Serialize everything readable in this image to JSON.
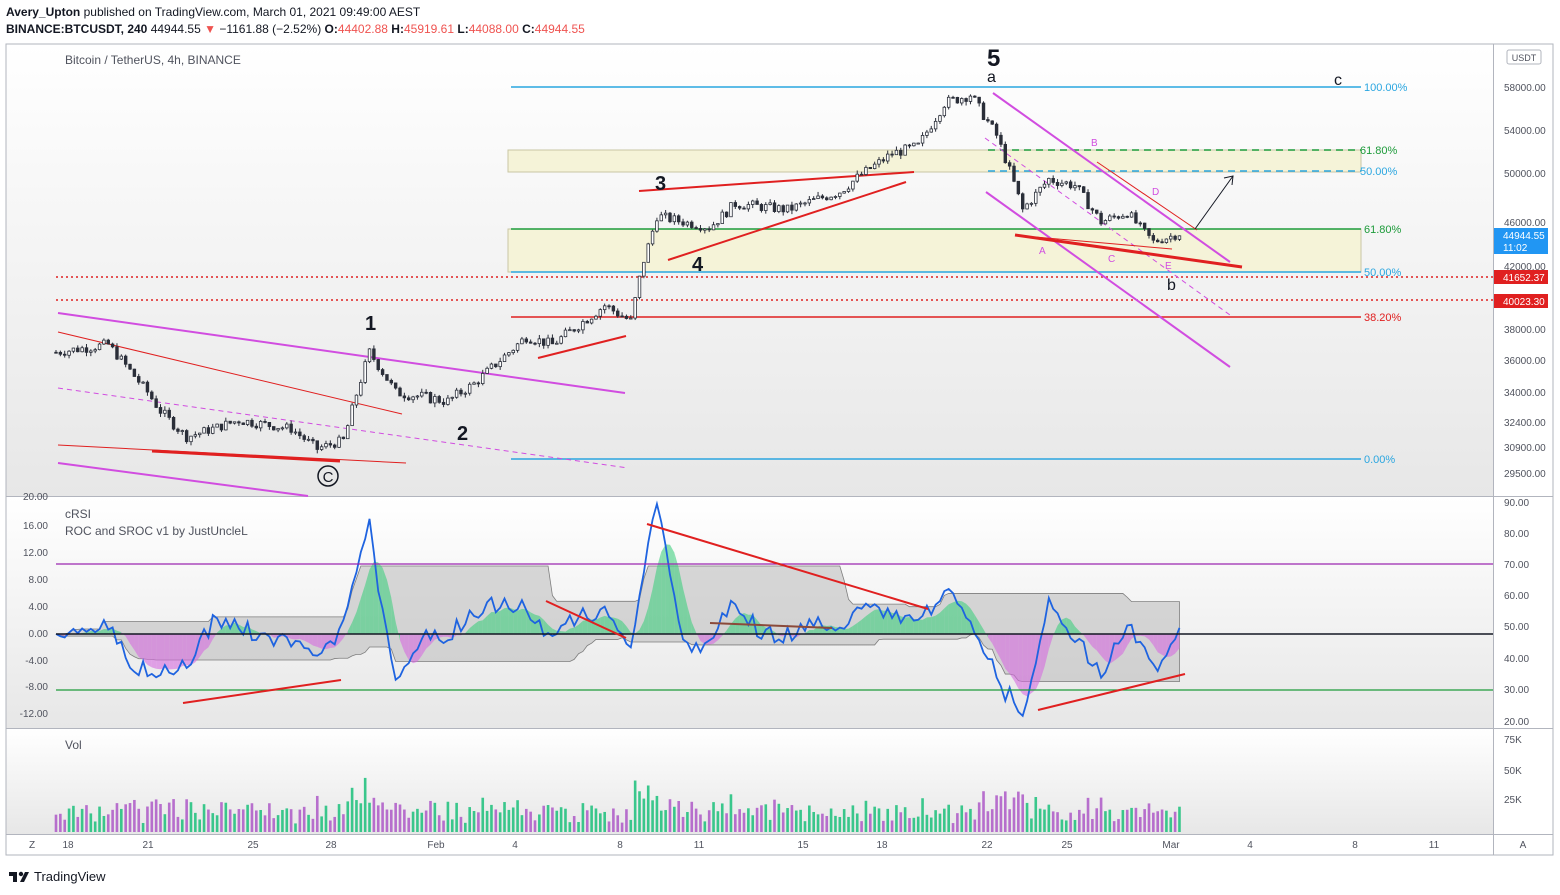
{
  "header": {
    "publisher": "Avery_Upton",
    "published_text": "published on TradingView.com, March 01, 2021 09:49:00 AEST",
    "symbol": "BINANCE:BTCUSDT, 240",
    "last": "44944.55",
    "change_arrow": "▼",
    "change": "−1161.88 (−2.52%)",
    "o_label": "O:",
    "o": "44402.88",
    "h_label": "H:",
    "h": "45919.61",
    "l_label": "L:",
    "l": "44088.00",
    "c_label": "C:",
    "c": "44944.55"
  },
  "main": {
    "legend": "Bitcoin / TetherUS, 4h, BINANCE",
    "currency": "USDT",
    "price_labels": [
      "58000.00",
      "54000.00",
      "50000.00",
      "46000.00",
      "42000.00",
      "38000.00",
      "36000.00",
      "34000.00",
      "32400.00",
      "30900.00",
      "29500.00"
    ],
    "last_price_tag": "44944.55",
    "countdown": "11:02",
    "level_tags": [
      "41652.37",
      "40023.30"
    ],
    "fib_labels": [
      "100.00%",
      "61.80%",
      "50.00%",
      "61.80%",
      "50.00%",
      "38.20%",
      "0.00%"
    ],
    "wave_labels": [
      "5",
      "a",
      "c",
      "3",
      "4",
      "1",
      "2",
      "C",
      "b"
    ],
    "sub_labels": [
      "A",
      "B",
      "C",
      "D",
      "E"
    ]
  },
  "osc": {
    "legend1": "cRSI",
    "legend2": "ROC and SROC v1 by JustUncleL",
    "left_axis": [
      "20.00",
      "16.00",
      "12.00",
      "8.00",
      "4.00",
      "0.00",
      "-4.00",
      "-8.00",
      "-12.00"
    ],
    "right_axis": [
      "90.00",
      "80.00",
      "70.00",
      "60.00",
      "50.00",
      "40.00",
      "30.00",
      "20.00"
    ]
  },
  "vol": {
    "legend": "Vol",
    "axis": [
      "75K",
      "50K",
      "25K"
    ]
  },
  "xaxis": {
    "labels": [
      "18",
      "21",
      "25",
      "28",
      "Feb",
      "4",
      "8",
      "11",
      "15",
      "18",
      "22",
      "25",
      "Mar",
      "4",
      "8",
      "11"
    ],
    "left_btn": "Z",
    "right_btn": "A"
  },
  "footer": {
    "brand": "TradingView"
  },
  "chart_data": {
    "type": "candlestick",
    "symbol": "BINANCE:BTCUSDT",
    "interval": "4h",
    "x_range": [
      "2021-01-17",
      "2021-03-13"
    ],
    "ylim": [
      28500,
      60000
    ],
    "y_ticks": [
      58000,
      54000,
      50000,
      46000,
      42000,
      38000,
      36000,
      34000,
      32400,
      30900,
      29500
    ],
    "last_price": 44944.55,
    "horizontal_levels": [
      41652.37,
      40023.3
    ],
    "fibonacci": {
      "levels": [
        "100.00%",
        "61.80%",
        "50.00%",
        "38.20%",
        "0.00%"
      ]
    },
    "price_path": [
      {
        "date": "2021-01-17",
        "price": 36500
      },
      {
        "date": "2021-01-19",
        "price": 37000
      },
      {
        "date": "2021-01-21",
        "price": 33000
      },
      {
        "date": "2021-01-22",
        "price": 31500
      },
      {
        "date": "2021-01-24",
        "price": 32500
      },
      {
        "date": "2021-01-26",
        "price": 32000
      },
      {
        "date": "2021-01-27",
        "price": 30800
      },
      {
        "date": "2021-01-28",
        "price": 31300
      },
      {
        "date": "2021-01-29",
        "price": 36500
      },
      {
        "date": "2021-01-30",
        "price": 34000
      },
      {
        "date": "2021-02-01",
        "price": 33500
      },
      {
        "date": "2021-02-02",
        "price": 34500
      },
      {
        "date": "2021-02-04",
        "price": 37500
      },
      {
        "date": "2021-02-05",
        "price": 37000
      },
      {
        "date": "2021-02-07",
        "price": 39500
      },
      {
        "date": "2021-02-08",
        "price": 38500
      },
      {
        "date": "2021-02-09",
        "price": 46500
      },
      {
        "date": "2021-02-11",
        "price": 45500
      },
      {
        "date": "2021-02-12",
        "price": 47500
      },
      {
        "date": "2021-02-14",
        "price": 47000
      },
      {
        "date": "2021-02-16",
        "price": 48500
      },
      {
        "date": "2021-02-18",
        "price": 51800
      },
      {
        "date": "2021-02-19",
        "price": 52500
      },
      {
        "date": "2021-02-20",
        "price": 56500
      },
      {
        "date": "2021-02-21",
        "price": 57300
      },
      {
        "date": "2021-02-22",
        "price": 53500
      },
      {
        "date": "2021-02-23",
        "price": 47000
      },
      {
        "date": "2021-02-24",
        "price": 49500
      },
      {
        "date": "2021-02-25",
        "price": 49000
      },
      {
        "date": "2021-02-26",
        "price": 46000
      },
      {
        "date": "2021-02-27",
        "price": 46800
      },
      {
        "date": "2021-02-28",
        "price": 44200
      },
      {
        "date": "2021-03-01",
        "price": 44944.55
      }
    ]
  }
}
